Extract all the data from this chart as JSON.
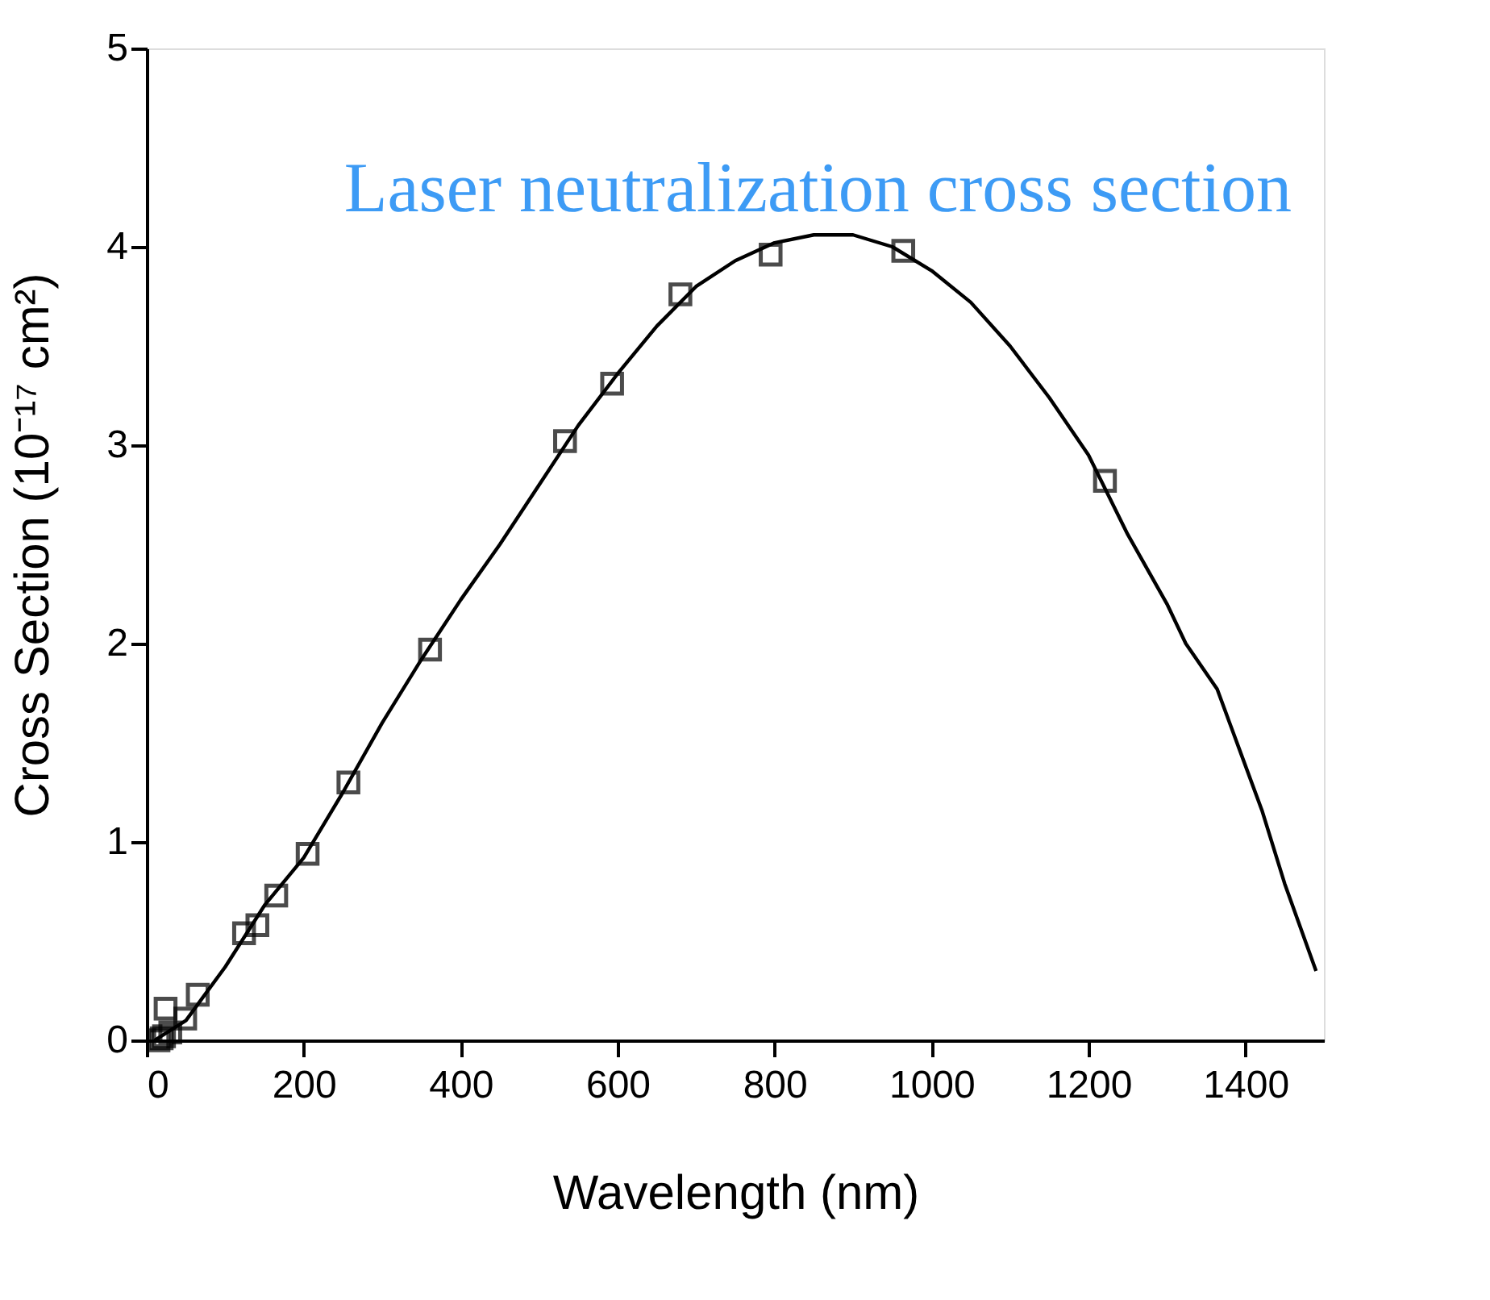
{
  "chart_data": {
    "type": "scatter",
    "xlabel": "Wavelength (nm)",
    "ylabel": "Cross Section  (10⁻¹⁷ cm²)",
    "annotations": [
      "Laser neutralization cross section"
    ],
    "xlim": [
      0,
      1500
    ],
    "xticks": [
      0,
      200,
      400,
      600,
      800,
      1000,
      1200,
      1400
    ],
    "ylim": [
      0,
      5
    ],
    "yticks": [
      0,
      1,
      2,
      3,
      4,
      5
    ],
    "grid": false,
    "series": [
      {
        "type": "scatter",
        "marker": "square",
        "color": "#000000",
        "x": [
          15,
          19,
          22,
          30,
          24,
          49,
          65,
          124,
          141,
          165,
          205,
          257,
          361,
          533,
          593,
          680,
          795,
          964,
          1221
        ],
        "values": [
          0.0,
          0.01,
          0.02,
          0.04,
          0.16,
          0.11,
          0.23,
          0.54,
          0.58,
          0.73,
          0.94,
          1.3,
          1.97,
          3.02,
          3.31,
          3.76,
          3.96,
          3.98,
          2.82
        ]
      },
      {
        "type": "line",
        "marker": "none",
        "line_style": "solid",
        "color": "#000000",
        "x": [
          10,
          50,
          100,
          150,
          200,
          250,
          300,
          350,
          400,
          450,
          500,
          550,
          600,
          650,
          700,
          750,
          800,
          850,
          900,
          950,
          1000,
          1050,
          1100,
          1150,
          1200,
          1250,
          1300,
          1324,
          1364,
          1392,
          1421,
          1450,
          1490
        ],
        "values": [
          0.0,
          0.1,
          0.37,
          0.68,
          0.92,
          1.25,
          1.6,
          1.92,
          2.22,
          2.5,
          2.8,
          3.1,
          3.36,
          3.6,
          3.8,
          3.93,
          4.02,
          4.06,
          4.06,
          4.0,
          3.88,
          3.72,
          3.5,
          3.24,
          2.95,
          2.55,
          2.2,
          2.0,
          1.77,
          1.47,
          1.16,
          0.79,
          0.35
        ]
      }
    ]
  }
}
